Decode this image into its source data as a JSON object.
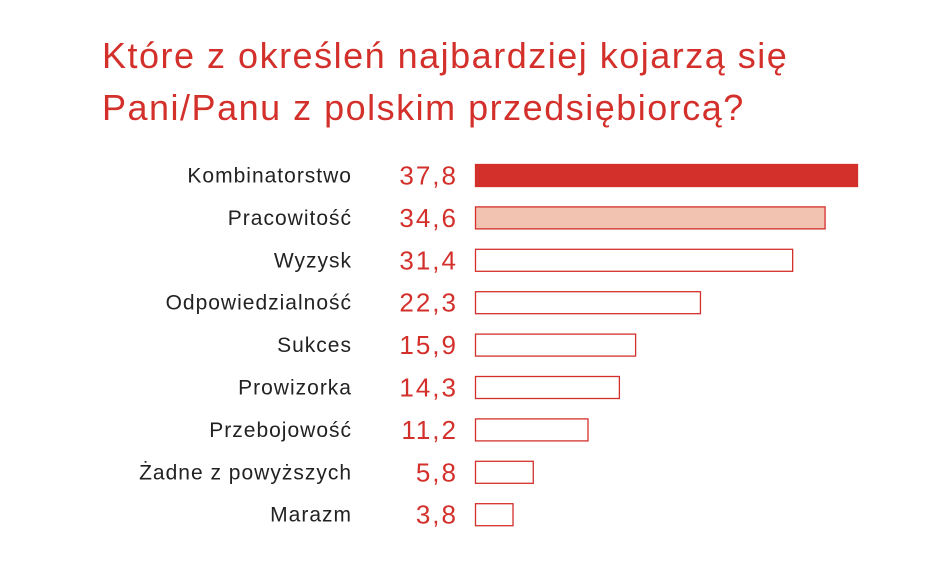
{
  "chart_data": {
    "type": "bar",
    "orientation": "horizontal",
    "title_lines": [
      "Które z określeń najbardziej kojarzą się",
      "Pani/Panu z polskim przedsiębiorcą?"
    ],
    "categories": [
      "Kombinatorstwo",
      "Pracowitość",
      "Wyzysk",
      "Odpowiedzialność",
      "Sukces",
      "Prowizorka",
      "Przebojowość",
      "Żadne z powyższych",
      "Marazm"
    ],
    "values": [
      37.8,
      34.6,
      31.4,
      22.3,
      15.9,
      14.3,
      11.2,
      5.8,
      3.8
    ],
    "value_labels": [
      "37,8",
      "34,6",
      "31,4",
      "22,3",
      "15,9",
      "14,3",
      "11,2",
      "5,8",
      "3,8"
    ],
    "xlim": [
      0,
      37.8
    ],
    "grid": false,
    "legend": "none",
    "colors": {
      "title": "#d3302b",
      "value_text": "#d3302b",
      "bar_outline": "#d3302b",
      "bar_fill_first": "#d3302b",
      "bar_fill_second": "#f3c3b2",
      "bar_fill_rest": "#ffffff",
      "category_text": "#222222"
    }
  }
}
